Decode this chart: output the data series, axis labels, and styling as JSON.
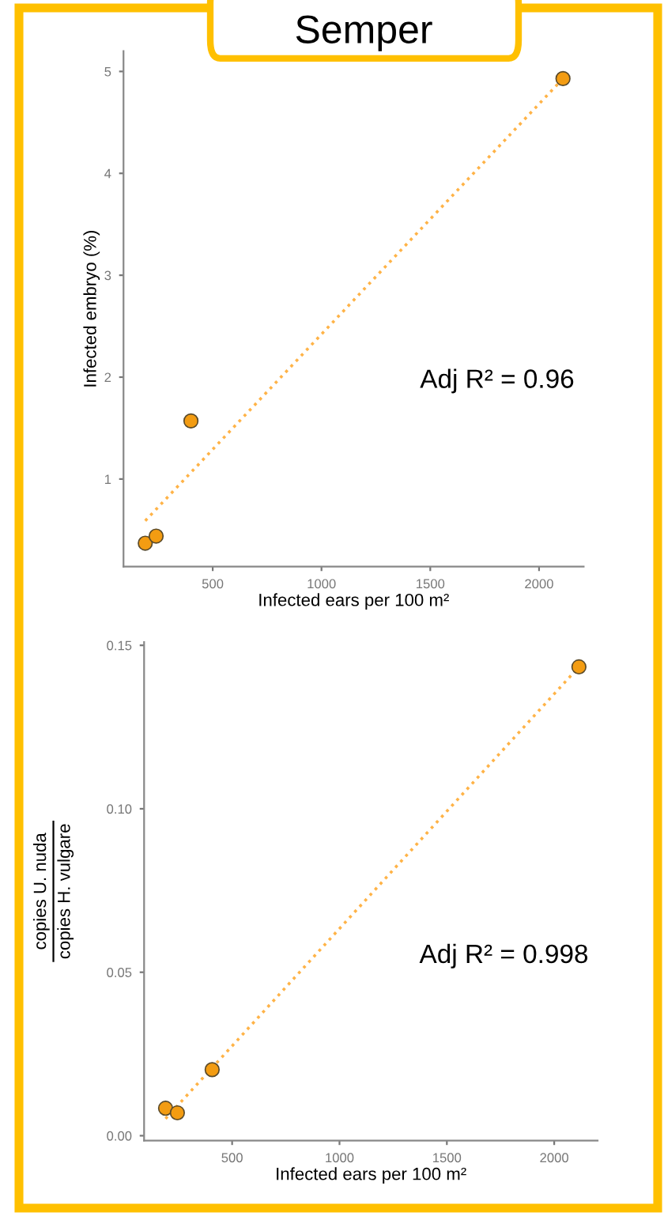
{
  "chart_data": [
    {
      "type": "scatter",
      "title": "Semper",
      "xlabel": "Infected ears per 100 m²",
      "ylabel": "Infected embryo (%)",
      "xlim": [
        90,
        2205
      ],
      "ylim": [
        0.14,
        5.2
      ],
      "xticks": [
        500,
        1000,
        1500,
        2000
      ],
      "yticks": [
        1,
        2,
        3,
        4,
        5
      ],
      "grid": false,
      "marker": "circle",
      "annotations": [
        "Adj R² = 0.96"
      ],
      "series": [
        {
          "color": "#f39c12",
          "x": [
            190,
            240,
            400,
            2110
          ],
          "values": [
            0.37,
            0.44,
            1.57,
            4.93
          ]
        },
        {
          "type": "line",
          "line_style": "dotted",
          "marker": "none",
          "color": "#ffb347",
          "x": [
            190,
            2110
          ],
          "values": [
            0.59,
            4.93
          ]
        }
      ]
    },
    {
      "type": "scatter",
      "xlabel": "Infected ears per 100 m²",
      "ylabel": "copies U. nuda\ncopies H. vulgare",
      "xlim": [
        90,
        2202
      ],
      "ylim": [
        -0.0015,
        0.151
      ],
      "xticks": [
        500,
        1000,
        1500,
        2000
      ],
      "yticks": [
        {
          "value": 0.0,
          "label": "0.00"
        },
        {
          "value": 0.05,
          "label": "0.05"
        },
        {
          "value": 0.1,
          "label": "0.10"
        },
        0.15
      ],
      "grid": false,
      "marker": "circle",
      "annotations": [
        "Adj R² = 0.998"
      ],
      "series": [
        {
          "color": "#f39c12",
          "x": [
            190,
            245,
            407,
            2115
          ],
          "values": [
            0.0084,
            0.007,
            0.0202,
            0.1434
          ]
        },
        {
          "type": "line",
          "line_style": "dotted",
          "marker": "none",
          "color": "#ffb347",
          "x": [
            190,
            2115
          ],
          "values": [
            0.0052,
            0.1434
          ]
        }
      ]
    }
  ]
}
